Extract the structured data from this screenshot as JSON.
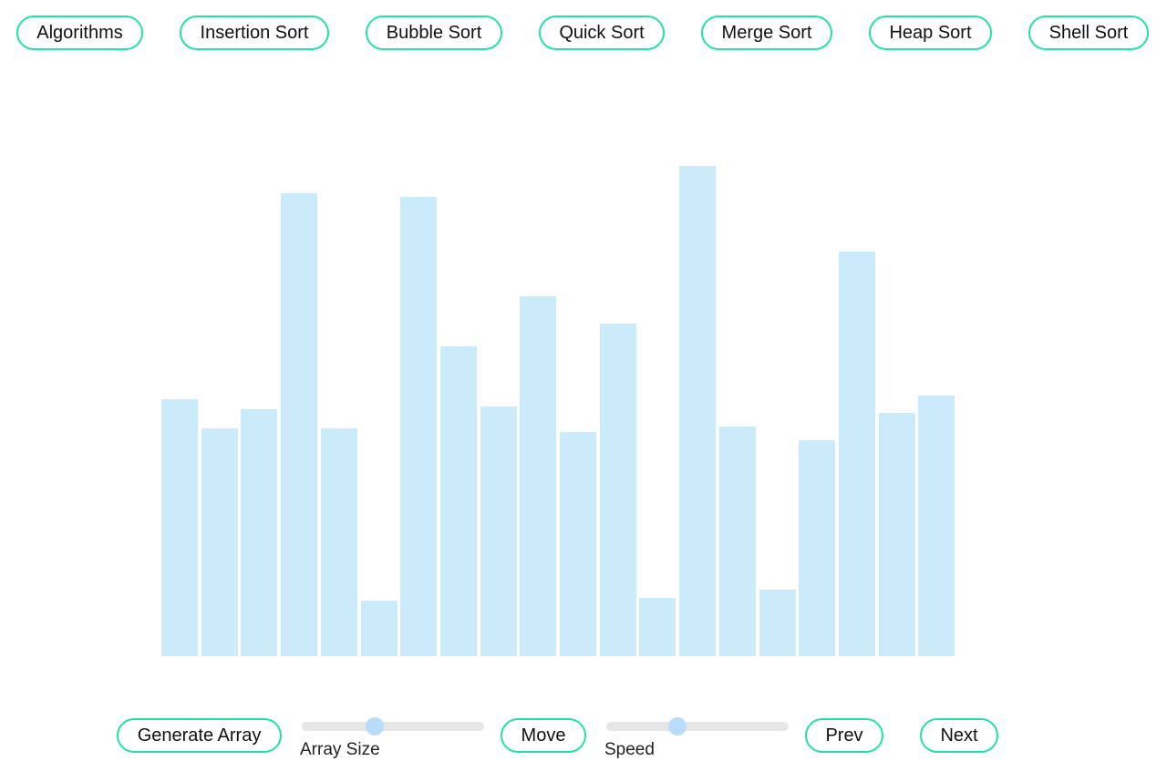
{
  "nav": {
    "algorithms": "Algorithms",
    "insertion": "Insertion Sort",
    "bubble": "Bubble Sort",
    "quick": "Quick Sort",
    "merge": "Merge Sort",
    "heap": "Heap Sort",
    "shell": "Shell Sort"
  },
  "array": {
    "values": [
      282,
      250,
      271,
      508,
      250,
      61,
      504,
      340,
      274,
      395,
      246,
      365,
      64,
      538,
      252,
      73,
      237,
      444,
      267,
      286
    ],
    "max": 600,
    "bar_color": "#cbeafa"
  },
  "controls": {
    "generate": "Generate Array",
    "array_size_label": "Array Size",
    "array_size_value": 0.4,
    "move": "Move",
    "speed_label": "Speed",
    "speed_value": 0.39,
    "prev": "Prev",
    "next": "Next"
  },
  "colors": {
    "button_border": "#22e0a8",
    "slider_track": "#e6e6e6",
    "slider_thumb": "#b9dcfb"
  }
}
